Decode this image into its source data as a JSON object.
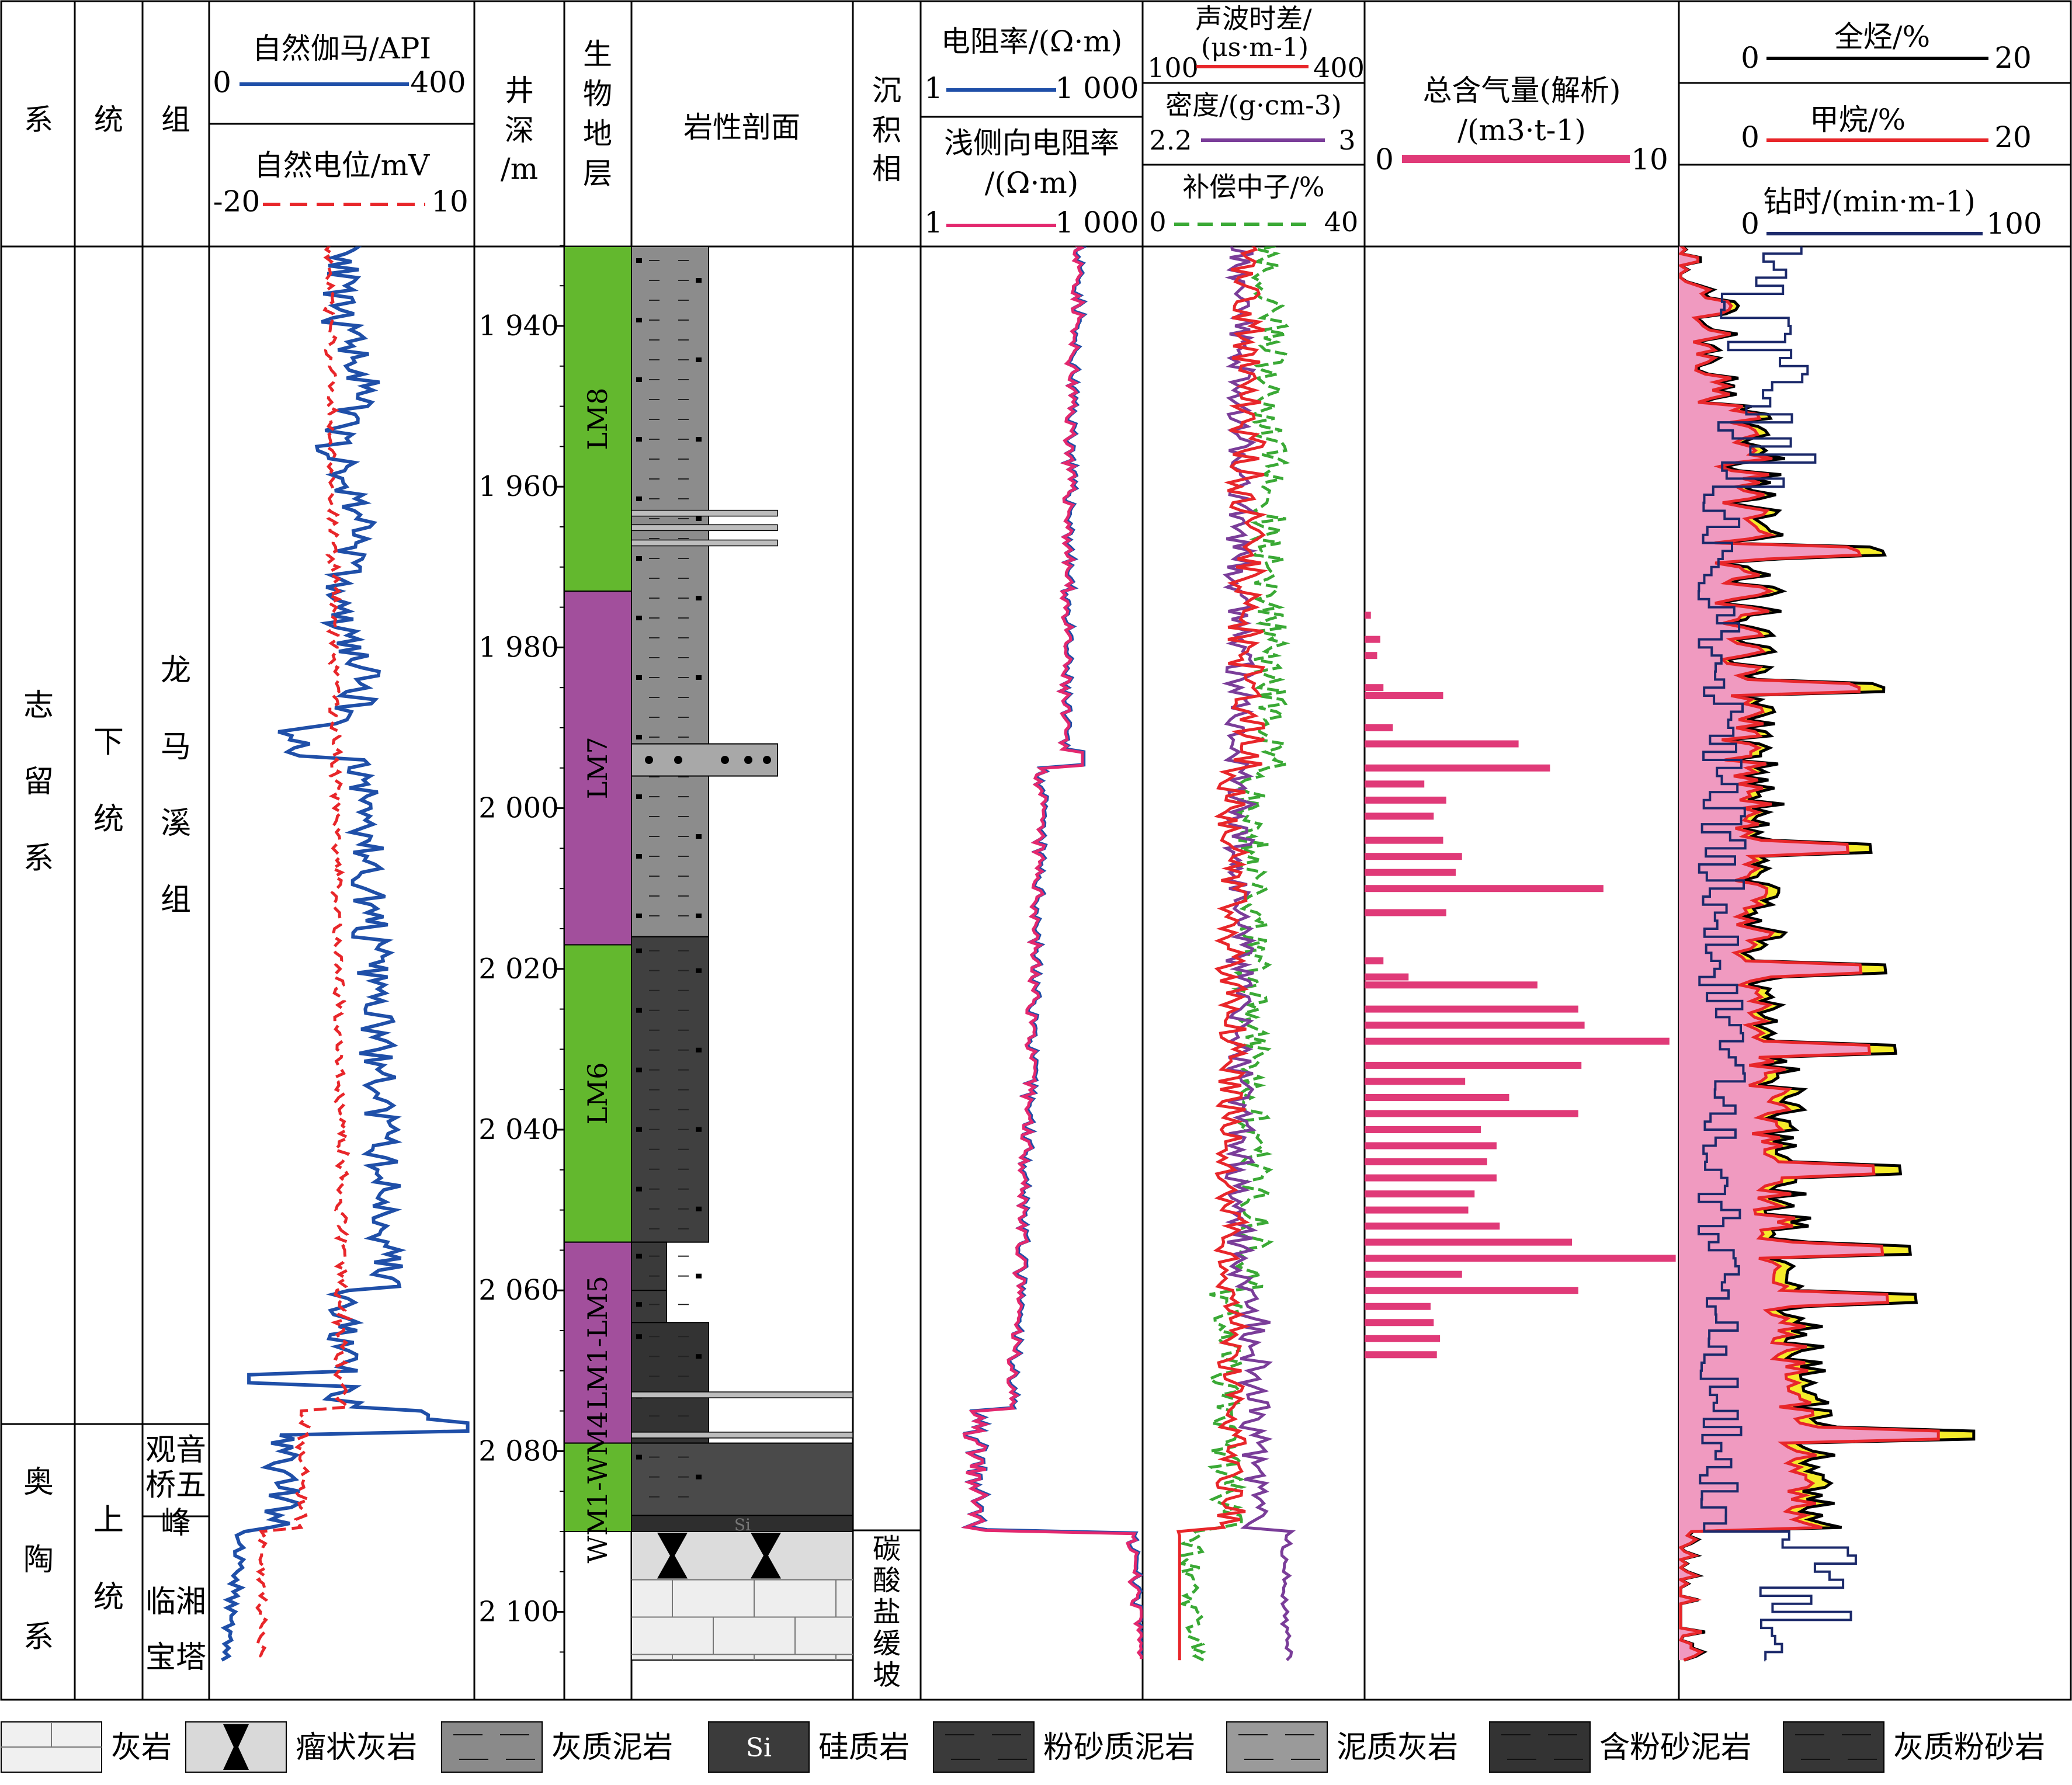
{
  "headers": {
    "system": "系",
    "series": "统",
    "formation": "组",
    "gamma": "自然伽马/API",
    "gamma_min": "0",
    "gamma_max": "400",
    "sp": "自然电位/mV",
    "sp_min": "-20",
    "sp_max": "10",
    "depth_l1": "井",
    "depth_l2": "深",
    "depth_l3": "/m",
    "bio": [
      "生",
      "物",
      "地",
      "层"
    ],
    "litho": "岩性剖面",
    "facies": [
      "沉",
      "积",
      "相"
    ],
    "res": "电阻率/(Ω·m)",
    "res_min": "1",
    "res_max": "1 000",
    "sres_l1": "浅侧向电阻率",
    "sres_l2": "/(Ω·m)",
    "sres_min": "1",
    "sres_max": "1 000",
    "ac_l1": "声波时差/",
    "ac_l2": "(μs·m-1)",
    "ac_min": "100",
    "ac_max": "400",
    "den": "密度/(g·cm-3)",
    "den_min": "2.2",
    "den_max": "3",
    "cnl": "补偿中子/%",
    "cnl_min": "0",
    "cnl_max": "40",
    "gas_l1": "总含气量(解析)",
    "gas_l2": "/(m3·t-1)",
    "gas_min": "0",
    "gas_max": "10",
    "tg": "全烃/%",
    "tg_min": "0",
    "tg_max": "20",
    "c1": "甲烷/%",
    "c1_min": "0",
    "c1_max": "20",
    "rop": "钻时/(min·m-1)",
    "rop_min": "0",
    "rop_max": "100"
  },
  "strat": {
    "system1": [
      "志",
      "留",
      "系"
    ],
    "system2": [
      "奥",
      "陶",
      "系"
    ],
    "series1": [
      "下",
      "统"
    ],
    "series2": [
      "上",
      "统"
    ],
    "formation1": [
      "龙",
      "马",
      "溪",
      "组"
    ],
    "formation2a": "观音",
    "formation2b": "桥五",
    "formation2c": "峰",
    "formation3a": "临湘",
    "formation3b": "宝塔",
    "facies_bottom": [
      "碳",
      "酸",
      "盐",
      "缓",
      "坡"
    ],
    "bio_units": [
      {
        "label": "LM8",
        "top": 1925,
        "bottom": 1973,
        "color": "#63b82e"
      },
      {
        "label": "LM7",
        "top": 1973,
        "bottom": 2017,
        "color": "#a24f9c"
      },
      {
        "label": "LM6",
        "top": 2017,
        "bottom": 2054,
        "color": "#63b82e"
      },
      {
        "label": "LM1-LM5",
        "top": 2054,
        "bottom": 2079,
        "color": "#a24f9c"
      },
      {
        "label": "WM1-WM4",
        "top": 2079,
        "bottom": 2090,
        "color": "#63b82e"
      }
    ]
  },
  "depth_ticks": [
    "1 940",
    "1 960",
    "1 980",
    "2 000",
    "2 020",
    "2 040",
    "2 060",
    "2 080",
    "2 100"
  ],
  "legend": [
    {
      "label": "灰岩",
      "pattern": "limestone"
    },
    {
      "label": "瘤状灰岩",
      "pattern": "nodular"
    },
    {
      "label": "灰质泥岩",
      "pattern": "calc-mud"
    },
    {
      "label": "硅质岩",
      "pattern": "siliceous",
      "inner": "Si"
    },
    {
      "label": "粉砂质泥岩",
      "pattern": "silty-mud"
    },
    {
      "label": "泥质灰岩",
      "pattern": "marly-ls"
    },
    {
      "label": "含粉砂泥岩",
      "pattern": "silt-bearing"
    },
    {
      "label": "灰质粉砂岩",
      "pattern": "calc-silt"
    }
  ],
  "colors": {
    "gamma": "#1f4fa8",
    "sp": "#e8262a",
    "res": "#1f4fa8",
    "sres": "#e3286e",
    "ac": "#e8262a",
    "den": "#7a3d99",
    "cnl": "#3aa935",
    "gas": "#e03a78",
    "tg": "#000000",
    "c1": "#e8262a",
    "rop": "#1c2a6b",
    "pink_fill": "#f09ac0",
    "yellow_fill": "#f5ec2a"
  },
  "chart_data": {
    "type": "well-log",
    "depth_range_m": [
      1925,
      2106
    ],
    "gas_content": [
      {
        "depth": 1976,
        "value": 0.2
      },
      {
        "depth": 1979,
        "value": 0.5
      },
      {
        "depth": 1981,
        "value": 0.4
      },
      {
        "depth": 1985,
        "value": 0.6
      },
      {
        "depth": 1986,
        "value": 2.5
      },
      {
        "depth": 1990,
        "value": 0.9
      },
      {
        "depth": 1992,
        "value": 4.9
      },
      {
        "depth": 1995,
        "value": 5.9
      },
      {
        "depth": 1997,
        "value": 1.9
      },
      {
        "depth": 1999,
        "value": 2.6
      },
      {
        "depth": 2001,
        "value": 2.2
      },
      {
        "depth": 2004,
        "value": 2.5
      },
      {
        "depth": 2006,
        "value": 3.1
      },
      {
        "depth": 2008,
        "value": 2.9
      },
      {
        "depth": 2010,
        "value": 7.6
      },
      {
        "depth": 2013,
        "value": 2.6
      },
      {
        "depth": 2019,
        "value": 0.6
      },
      {
        "depth": 2021,
        "value": 1.4
      },
      {
        "depth": 2022,
        "value": 5.5
      },
      {
        "depth": 2025,
        "value": 6.8
      },
      {
        "depth": 2027,
        "value": 7.0
      },
      {
        "depth": 2029,
        "value": 9.7
      },
      {
        "depth": 2032,
        "value": 6.9
      },
      {
        "depth": 2034,
        "value": 3.2
      },
      {
        "depth": 2036,
        "value": 4.6
      },
      {
        "depth": 2038,
        "value": 6.8
      },
      {
        "depth": 2040,
        "value": 3.7
      },
      {
        "depth": 2042,
        "value": 4.2
      },
      {
        "depth": 2044,
        "value": 3.9
      },
      {
        "depth": 2046,
        "value": 4.2
      },
      {
        "depth": 2048,
        "value": 3.5
      },
      {
        "depth": 2050,
        "value": 3.3
      },
      {
        "depth": 2052,
        "value": 4.3
      },
      {
        "depth": 2054,
        "value": 6.6
      },
      {
        "depth": 2056,
        "value": 9.9
      },
      {
        "depth": 2058,
        "value": 3.1
      },
      {
        "depth": 2060,
        "value": 6.8
      },
      {
        "depth": 2062,
        "value": 2.1
      },
      {
        "depth": 2064,
        "value": 2.2
      },
      {
        "depth": 2066,
        "value": 2.4
      },
      {
        "depth": 2068,
        "value": 2.3
      }
    ]
  }
}
